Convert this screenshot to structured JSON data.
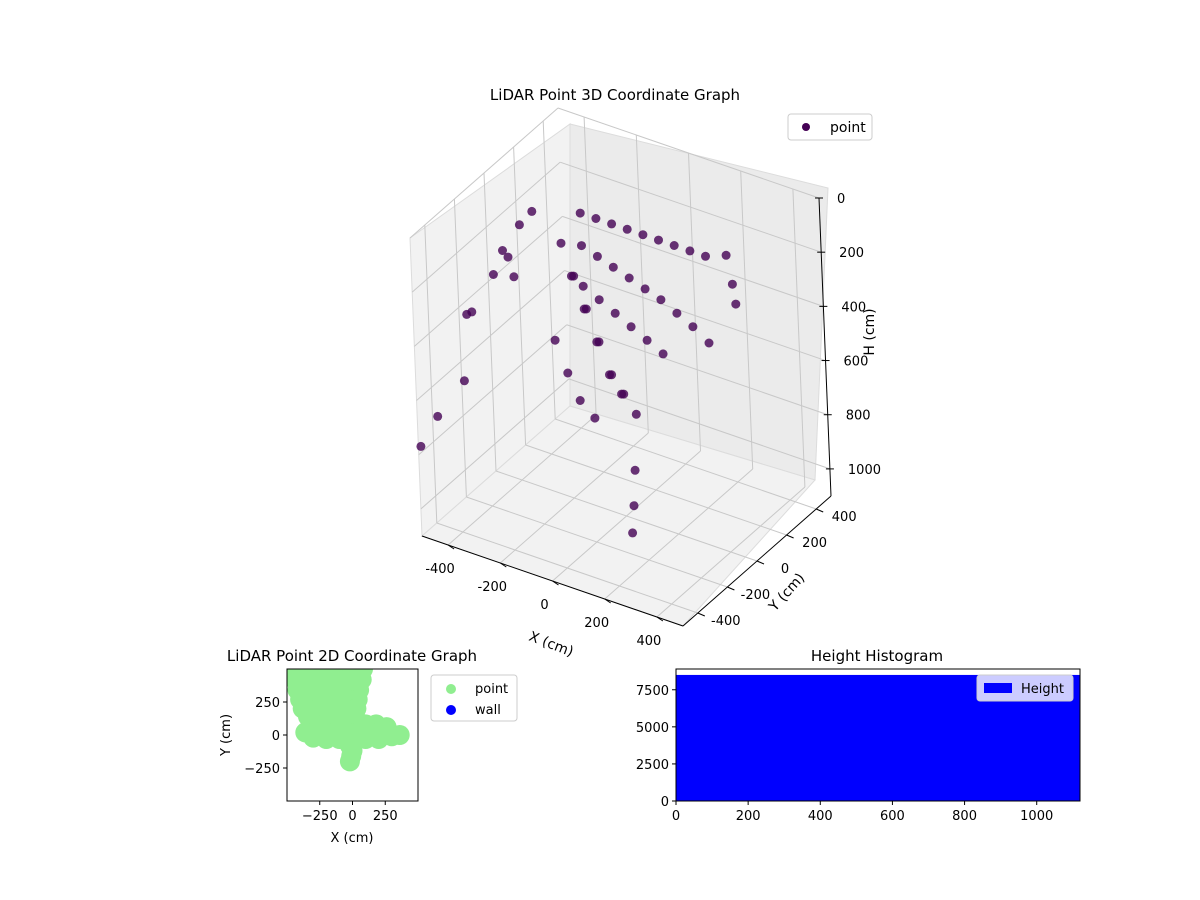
{
  "chart_data": [
    {
      "type": "scatter3d",
      "title": "LiDAR Point 3D Coordinate Graph",
      "xlabel": "X (cm)",
      "ylabel": "Y (cm)",
      "zlabel": "H (cm)",
      "xlim": [
        -500,
        500
      ],
      "ylim": [
        -500,
        500
      ],
      "zlim": [
        0,
        1100
      ],
      "z_inverted": true,
      "xticks": [
        -400,
        -200,
        0,
        200,
        400
      ],
      "yticks": [
        -400,
        -200,
        0,
        200,
        400
      ],
      "zticks": [
        0,
        200,
        400,
        600,
        800,
        1000
      ],
      "grid": true,
      "legend": {
        "position": "top-right",
        "entries": [
          "point"
        ]
      },
      "series": [
        {
          "name": "point",
          "color": "#440154",
          "points": [
            [
              -180,
              80,
              80
            ],
            [
              -120,
              80,
              80
            ],
            [
              -60,
              80,
              80
            ],
            [
              0,
              80,
              80
            ],
            [
              60,
              80,
              80
            ],
            [
              120,
              80,
              80
            ],
            [
              180,
              80,
              80
            ],
            [
              240,
              80,
              80
            ],
            [
              300,
              80,
              80
            ],
            [
              -180,
              80,
              200
            ],
            [
              -120,
              80,
              220
            ],
            [
              -60,
              80,
              240
            ],
            [
              0,
              80,
              260
            ],
            [
              60,
              80,
              280
            ],
            [
              120,
              80,
              300
            ],
            [
              180,
              80,
              330
            ],
            [
              240,
              80,
              360
            ],
            [
              300,
              80,
              400
            ],
            [
              -180,
              80,
              350
            ],
            [
              -120,
              80,
              380
            ],
            [
              -60,
              80,
              410
            ],
            [
              0,
              80,
              440
            ],
            [
              60,
              80,
              470
            ],
            [
              120,
              80,
              500
            ],
            [
              -200,
              -20,
              150
            ],
            [
              -150,
              -30,
              250
            ],
            [
              -100,
              -40,
              350
            ],
            [
              -50,
              -50,
              450
            ],
            [
              0,
              -60,
              550
            ],
            [
              50,
              -70,
              600
            ],
            [
              -200,
              40,
              300
            ],
            [
              -150,
              30,
              400
            ],
            [
              -100,
              20,
              500
            ],
            [
              -50,
              10,
              600
            ],
            [
              0,
              0,
              650
            ],
            [
              60,
              -10,
              700
            ],
            [
              -220,
              -50,
              500
            ],
            [
              -170,
              -60,
              600
            ],
            [
              -120,
              -70,
              680
            ],
            [
              -60,
              -80,
              720
            ],
            [
              -450,
              -200,
              400
            ],
            [
              -420,
              -100,
              300
            ],
            [
              -400,
              0,
              350
            ],
            [
              -390,
              -50,
              250
            ],
            [
              -380,
              100,
              150
            ],
            [
              -460,
              150,
              250
            ],
            [
              -470,
              50,
              300
            ],
            [
              -500,
              -150,
              450
            ],
            [
              -430,
              -300,
              600
            ],
            [
              -480,
              -400,
              700
            ],
            [
              -520,
              -450,
              800
            ],
            [
              100,
              -100,
              850
            ],
            [
              120,
              -150,
              950
            ],
            [
              140,
              -200,
              1020
            ],
            [
              380,
              80,
              50
            ],
            [
              400,
              80,
              150
            ],
            [
              410,
              80,
              220
            ]
          ]
        }
      ]
    },
    {
      "type": "scatter",
      "title": "LiDAR Point 2D Coordinate Graph",
      "xlabel": "X (cm)",
      "ylabel": "Y (cm)",
      "xlim": [
        -500,
        500
      ],
      "ylim": [
        -500,
        500
      ],
      "xticks": [
        -250,
        0,
        250
      ],
      "yticks": [
        -250,
        0,
        250
      ],
      "legend": {
        "position": "outside-right",
        "entries": [
          "point",
          "wall"
        ]
      },
      "series": [
        {
          "name": "point",
          "color": "#90ee90",
          "points": [
            [
              -450,
              500
            ],
            [
              -350,
              500
            ],
            [
              -250,
              500
            ],
            [
              -150,
              500
            ],
            [
              -50,
              500
            ],
            [
              80,
              500
            ],
            [
              -440,
              420
            ],
            [
              -330,
              420
            ],
            [
              -220,
              420
            ],
            [
              -110,
              420
            ],
            [
              0,
              420
            ],
            [
              70,
              420
            ],
            [
              -420,
              340
            ],
            [
              -300,
              340
            ],
            [
              -180,
              340
            ],
            [
              -60,
              340
            ],
            [
              50,
              340
            ],
            [
              -400,
              270
            ],
            [
              -280,
              270
            ],
            [
              -160,
              270
            ],
            [
              -40,
              270
            ],
            [
              40,
              270
            ],
            [
              -380,
              200
            ],
            [
              -260,
              200
            ],
            [
              -140,
              200
            ],
            [
              -30,
              200
            ],
            [
              30,
              200
            ],
            [
              -340,
              140
            ],
            [
              -240,
              140
            ],
            [
              -140,
              140
            ],
            [
              -40,
              140
            ],
            [
              20,
              140
            ],
            [
              -300,
              80
            ],
            [
              -220,
              80
            ],
            [
              -140,
              80
            ],
            [
              -60,
              80
            ],
            [
              20,
              80
            ],
            [
              100,
              80
            ],
            [
              180,
              80
            ],
            [
              260,
              60
            ],
            [
              -360,
              20
            ],
            [
              -280,
              20
            ],
            [
              -200,
              20
            ],
            [
              -120,
              20
            ],
            [
              -40,
              20
            ],
            [
              40,
              20
            ],
            [
              120,
              20
            ],
            [
              200,
              20
            ],
            [
              280,
              20
            ],
            [
              360,
              0
            ],
            [
              -300,
              -20
            ],
            [
              -200,
              -30
            ],
            [
              -100,
              -30
            ],
            [
              0,
              -30
            ],
            [
              100,
              -30
            ],
            [
              200,
              -30
            ],
            [
              300,
              -10
            ],
            [
              -20,
              -80
            ],
            [
              0,
              -120
            ],
            [
              -10,
              -160
            ],
            [
              -20,
              -200
            ]
          ]
        },
        {
          "name": "wall",
          "color": "#0000ff",
          "points": []
        }
      ]
    },
    {
      "type": "bar",
      "title": "Height Histogram",
      "xlabel": "",
      "ylabel": "",
      "xlim": [
        0,
        1120
      ],
      "ylim": [
        0,
        8900
      ],
      "xticks": [
        0,
        200,
        400,
        600,
        800,
        1000
      ],
      "yticks": [
        0,
        2500,
        5000,
        7500
      ],
      "legend": {
        "position": "top-right",
        "entries": [
          "Height"
        ]
      },
      "series": [
        {
          "name": "Height",
          "color": "#0000ff",
          "bins": [
            [
              0,
              1120,
              8500
            ]
          ]
        }
      ]
    }
  ]
}
